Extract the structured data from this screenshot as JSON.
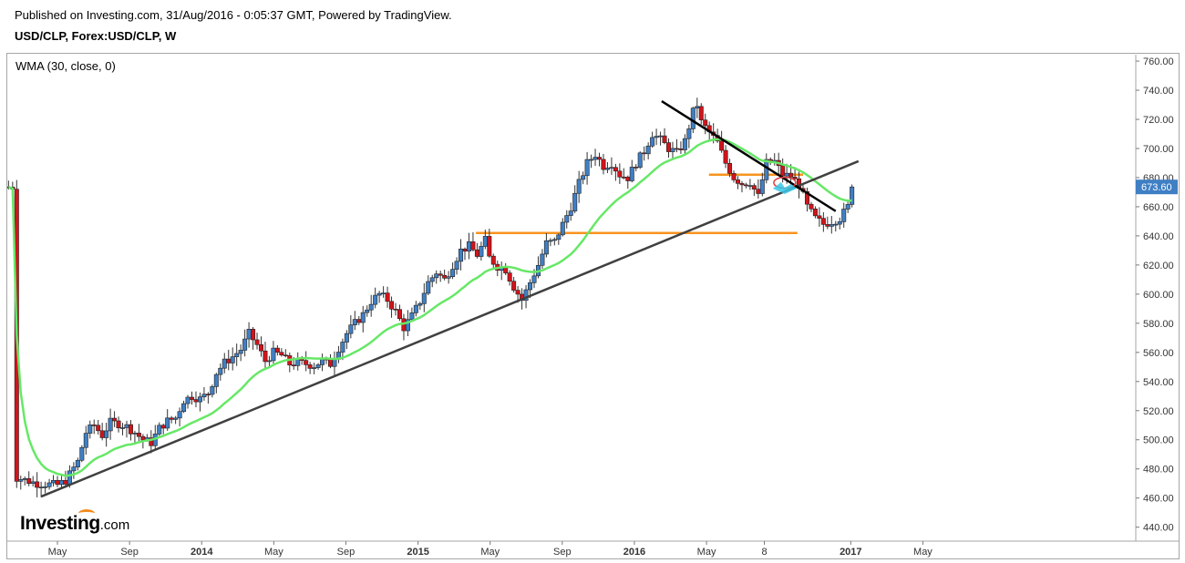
{
  "header": {
    "published": "Published on Investing.com, 31/Aug/2016 - 0:05:37 GMT, Powered by TradingView.",
    "symbol": "USD/CLP, Forex:USD/CLP, W"
  },
  "indicator": {
    "label": "WMA (30, close, 0)"
  },
  "logo": {
    "main": "Investing",
    "suffix": ".com"
  },
  "colors": {
    "up": "#3f7fc4",
    "down": "#d1141b",
    "wma": "#66e866",
    "trendline": "#404040",
    "resistance": "#000000",
    "horizontal": "#f7931e",
    "price_badge": "#3f7fc4"
  },
  "chart_data": {
    "type": "candlestick",
    "title": "USD/CLP, Forex:USD/CLP, W",
    "ylim": [
      430,
      765
    ],
    "y_ticks": [
      "760.00",
      "740.00",
      "720.00",
      "700.00",
      "680.00",
      "660.00",
      "640.00",
      "620.00",
      "600.00",
      "580.00",
      "560.00",
      "540.00",
      "520.00",
      "500.00",
      "480.00",
      "460.00",
      "440.00"
    ],
    "x_labels": [
      {
        "label": "May",
        "t": 0.0
      },
      {
        "label": "Sep",
        "t": 17.7
      },
      {
        "label": "2014",
        "t": 35.4
      },
      {
        "label": "May",
        "t": 53.1
      },
      {
        "label": "Sep",
        "t": 70.8
      },
      {
        "label": "2015",
        "t": 88.5
      },
      {
        "label": "May",
        "t": 106.2
      },
      {
        "label": "Sep",
        "t": 123.9
      },
      {
        "label": "2016",
        "t": 141.6
      },
      {
        "label": "May",
        "t": 159.3
      },
      {
        "label": "8",
        "t": 173.5
      },
      {
        "label": "2017",
        "t": 194.7
      },
      {
        "label": "May",
        "t": 212.4
      }
    ],
    "last_price": "673.60",
    "anchors": [
      [
        -10,
        474
      ],
      [
        -5,
        470
      ],
      [
        0,
        469
      ],
      [
        2,
        472
      ],
      [
        5,
        485
      ],
      [
        7,
        505
      ],
      [
        9,
        510
      ],
      [
        11,
        503
      ],
      [
        13,
        512
      ],
      [
        15,
        511
      ],
      [
        17,
        509
      ],
      [
        19,
        505
      ],
      [
        21,
        500
      ],
      [
        23,
        498
      ],
      [
        25,
        508
      ],
      [
        27,
        513
      ],
      [
        29,
        515
      ],
      [
        31,
        527
      ],
      [
        33,
        530
      ],
      [
        35,
        528
      ],
      [
        37,
        532
      ],
      [
        39,
        546
      ],
      [
        41,
        553
      ],
      [
        43,
        557
      ],
      [
        45,
        562
      ],
      [
        47,
        573
      ],
      [
        49,
        565
      ],
      [
        51,
        554
      ],
      [
        53,
        560
      ],
      [
        55,
        558
      ],
      [
        57,
        552
      ],
      [
        59,
        553
      ],
      [
        61,
        552
      ],
      [
        63,
        551
      ],
      [
        65,
        554
      ],
      [
        67,
        552
      ],
      [
        69,
        563
      ],
      [
        71,
        573
      ],
      [
        73,
        580
      ],
      [
        75,
        586
      ],
      [
        77,
        595
      ],
      [
        79,
        600
      ],
      [
        81,
        596
      ],
      [
        83,
        588
      ],
      [
        85,
        577
      ],
      [
        87,
        585
      ],
      [
        89,
        595
      ],
      [
        91,
        608
      ],
      [
        93,
        615
      ],
      [
        95,
        610
      ],
      [
        97,
        620
      ],
      [
        99,
        630
      ],
      [
        101,
        633
      ],
      [
        103,
        627
      ],
      [
        105,
        637
      ],
      [
        106,
        625
      ],
      [
        108,
        619
      ],
      [
        110,
        617
      ],
      [
        112,
        605
      ],
      [
        114,
        596
      ],
      [
        116,
        608
      ],
      [
        118,
        620
      ],
      [
        120,
        635
      ],
      [
        122,
        636
      ],
      [
        124,
        648
      ],
      [
        126,
        660
      ],
      [
        128,
        676
      ],
      [
        130,
        690
      ],
      [
        132,
        696
      ],
      [
        134,
        688
      ],
      [
        136,
        690
      ],
      [
        138,
        682
      ],
      [
        140,
        680
      ],
      [
        142,
        690
      ],
      [
        144,
        698
      ],
      [
        146,
        710
      ],
      [
        148,
        706
      ],
      [
        150,
        700
      ],
      [
        152,
        697
      ],
      [
        154,
        705
      ],
      [
        156,
        725
      ],
      [
        157,
        730
      ],
      [
        158,
        718
      ],
      [
        160,
        711
      ],
      [
        162,
        704
      ],
      [
        164,
        690
      ],
      [
        166,
        680
      ],
      [
        168,
        676
      ],
      [
        170,
        677
      ],
      [
        172,
        667
      ],
      [
        174,
        690
      ],
      [
        176,
        691
      ],
      [
        178,
        682
      ],
      [
        180,
        681
      ],
      [
        182,
        675
      ],
      [
        184,
        660
      ],
      [
        186,
        652
      ],
      [
        188,
        648
      ],
      [
        190,
        650
      ],
      [
        192,
        652
      ],
      [
        194,
        660
      ],
      [
        195.5,
        673.6
      ]
    ],
    "trendlines": [
      {
        "name": "rising-support",
        "from": [
          -4,
          461
        ],
        "to": [
          196.6,
          691.3
        ],
        "color": "#404040"
      },
      {
        "name": "falling-resistance",
        "from": [
          148.3,
          732.5
        ],
        "to": [
          191.0,
          657.0
        ],
        "color": "#000000"
      }
    ],
    "horizontal_levels": [
      {
        "value": 642.0,
        "from": 102.7,
        "to": 181.6
      },
      {
        "value": 682.0,
        "from": 159.9,
        "to": 183.0
      }
    ],
    "markers": [
      {
        "type": "ellipse",
        "x": 178.5,
        "y": 676.5,
        "color": "#e23b3b"
      },
      {
        "type": "arrow",
        "x": 178.5,
        "y": 672.5,
        "color": "#37c8e8"
      }
    ]
  }
}
